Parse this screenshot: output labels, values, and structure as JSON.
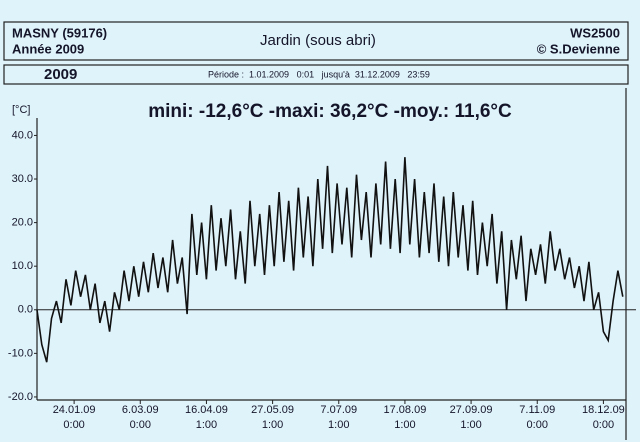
{
  "header": {
    "station": "MASNY (59176)",
    "year_line": "Année 2009",
    "location": "Jardin (sous abri)",
    "device": "WS2500",
    "author": "© S.Devienne",
    "year": "2009",
    "period": "Période :  1.01.2009   0:01   jusqu'à  31.12.2009   23:59"
  },
  "chart_data": {
    "type": "line",
    "title": "mini: -12,6°C -maxi: 36,2°C -moy.: 11,6°C",
    "y_label": "[°C]",
    "color": "#111111",
    "x": [
      0,
      3,
      6,
      9,
      12,
      15,
      18,
      21,
      24,
      27,
      30,
      33,
      36,
      39,
      42,
      45,
      48,
      51,
      54,
      57,
      60,
      63,
      66,
      69,
      72,
      75,
      78,
      81,
      84,
      87,
      90,
      93,
      96,
      99,
      102,
      105,
      108,
      111,
      114,
      117,
      120,
      123,
      126,
      129,
      132,
      135,
      138,
      141,
      144,
      147,
      150,
      153,
      156,
      159,
      162,
      165,
      168,
      171,
      174,
      177,
      180,
      183,
      186,
      189,
      192,
      195,
      198,
      201,
      204,
      207,
      210,
      213,
      216,
      219,
      222,
      225,
      228,
      231,
      234,
      237,
      240,
      243,
      246,
      249,
      252,
      255,
      258,
      261,
      264,
      267,
      270,
      273,
      276,
      279,
      282,
      285,
      288,
      291,
      294,
      297,
      300,
      303,
      306,
      309,
      312,
      315,
      318,
      321,
      324,
      327,
      330,
      333,
      336,
      339,
      342,
      345,
      348,
      351,
      354,
      357,
      360,
      363
    ],
    "values": [
      0,
      -8,
      -12,
      -2,
      2,
      -3,
      7,
      1,
      9,
      3,
      8,
      0,
      6,
      -3,
      2,
      -5,
      4,
      0,
      9,
      2,
      10,
      3,
      11,
      4,
      13,
      5,
      12,
      4,
      16,
      6,
      12,
      -1,
      22,
      8,
      20,
      7,
      24,
      9,
      21,
      10,
      23,
      7,
      18,
      6,
      25,
      10,
      22,
      8,
      24,
      10,
      27,
      11,
      25,
      9,
      28,
      12,
      26,
      10,
      30,
      14,
      33,
      13,
      29,
      15,
      28,
      12,
      31,
      16,
      27,
      12,
      29,
      15,
      34,
      14,
      30,
      13,
      35,
      15,
      30,
      12,
      27,
      13,
      29,
      11,
      26,
      10,
      27,
      12,
      24,
      9,
      25,
      8,
      20,
      10,
      22,
      6,
      18,
      0,
      16,
      7,
      17,
      2,
      14,
      8,
      15,
      6,
      18,
      9,
      14,
      7,
      12,
      5,
      10,
      2,
      11,
      0,
      4,
      -5,
      -7,
      2,
      9,
      3
    ],
    "xlim": [
      0,
      365
    ],
    "xticks": [
      {
        "value": 23,
        "label": "24.01.09 0:00"
      },
      {
        "value": 64,
        "label": "6.03.09 0:00"
      },
      {
        "value": 105,
        "label": "16.04.09 1:00"
      },
      {
        "value": 146,
        "label": "27.05.09 1:00"
      },
      {
        "value": 187,
        "label": "7.07.09 1:00"
      },
      {
        "value": 228,
        "label": "17.08.09 1:00"
      },
      {
        "value": 269,
        "label": "27.09.09 1:00"
      },
      {
        "value": 310,
        "label": "7.11.09 0:00"
      },
      {
        "value": 351,
        "label": "18.12.09 0:00"
      }
    ],
    "ylim": [
      -20.7,
      44
    ],
    "yticks": [
      {
        "value": -20,
        "label": "-20.0"
      },
      {
        "value": -10,
        "label": "-10.0"
      },
      {
        "value": 0,
        "label": "0.0"
      },
      {
        "value": 10,
        "label": "10.0"
      },
      {
        "value": 20,
        "label": "20.0"
      },
      {
        "value": 30,
        "label": "30.0"
      },
      {
        "value": 40,
        "label": "40.0"
      }
    ]
  }
}
